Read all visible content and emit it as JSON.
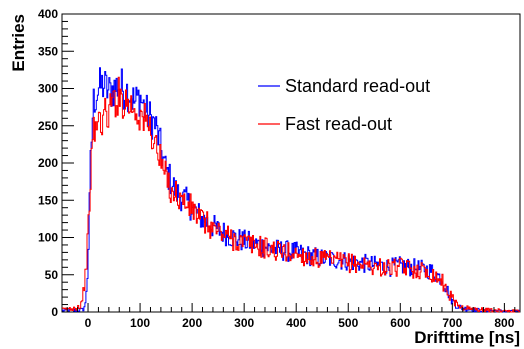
{
  "chart_data": {
    "type": "line",
    "xlabel": "Drifttime [ns]",
    "ylabel": "Entries",
    "xlim": [
      -50,
      830
    ],
    "ylim": [
      0,
      400
    ],
    "xticks": [
      0,
      100,
      200,
      300,
      400,
      500,
      600,
      700,
      800
    ],
    "yticks": [
      0,
      50,
      100,
      150,
      200,
      250,
      300,
      350,
      400
    ],
    "legend_position": "top-right",
    "series": [
      {
        "name": "Standard read-out",
        "color": "#0000ff",
        "x": [
          -50,
          -30,
          -10,
          -5,
          0,
          5,
          10,
          20,
          30,
          40,
          50,
          60,
          70,
          80,
          90,
          100,
          110,
          120,
          130,
          140,
          150,
          160,
          170,
          180,
          200,
          220,
          250,
          280,
          300,
          330,
          350,
          380,
          400,
          430,
          450,
          480,
          500,
          530,
          550,
          580,
          600,
          620,
          640,
          660,
          680,
          690,
          700,
          710,
          720,
          740,
          760,
          780,
          800,
          830
        ],
        "y": [
          2,
          2,
          3,
          10,
          60,
          200,
          280,
          300,
          305,
          295,
          300,
          305,
          298,
          295,
          280,
          290,
          270,
          260,
          250,
          220,
          190,
          175,
          160,
          155,
          140,
          125,
          110,
          100,
          95,
          90,
          85,
          82,
          80,
          75,
          72,
          70,
          68,
          65,
          63,
          60,
          62,
          60,
          58,
          55,
          45,
          30,
          15,
          8,
          5,
          3,
          2,
          2,
          1,
          1
        ]
      },
      {
        "name": "Fast read-out",
        "color": "#ff0000",
        "x": [
          -50,
          -30,
          -15,
          -10,
          -5,
          0,
          5,
          10,
          20,
          30,
          40,
          50,
          60,
          70,
          80,
          90,
          100,
          110,
          120,
          130,
          140,
          150,
          160,
          170,
          180,
          200,
          220,
          250,
          280,
          300,
          330,
          350,
          380,
          400,
          430,
          450,
          480,
          500,
          530,
          550,
          580,
          600,
          620,
          640,
          660,
          680,
          690,
          700,
          710,
          720,
          740,
          760,
          780,
          800,
          830
        ],
        "y": [
          3,
          5,
          8,
          20,
          50,
          100,
          180,
          240,
          255,
          262,
          268,
          285,
          290,
          285,
          280,
          272,
          265,
          255,
          245,
          225,
          200,
          180,
          165,
          158,
          150,
          138,
          122,
          108,
          98,
          93,
          88,
          84,
          80,
          78,
          73,
          70,
          68,
          66,
          64,
          61,
          59,
          60,
          58,
          56,
          52,
          42,
          28,
          18,
          10,
          6,
          4,
          3,
          2,
          2,
          1
        ]
      }
    ]
  }
}
